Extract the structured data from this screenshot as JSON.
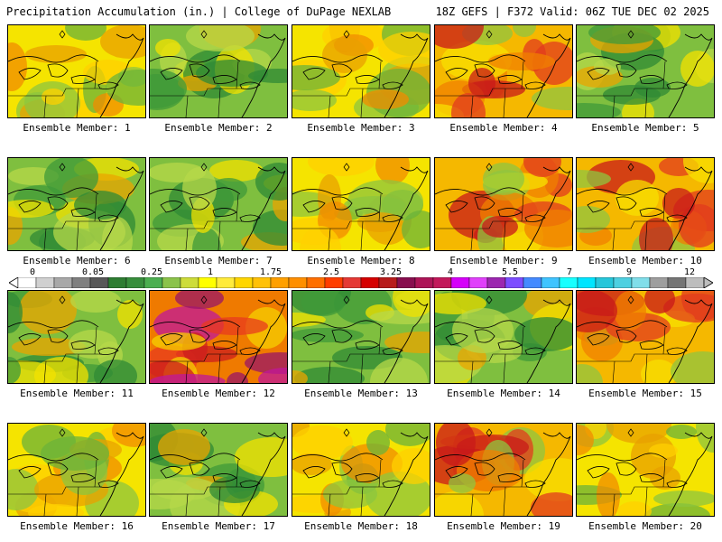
{
  "header": {
    "left_title": "Precipitation Accumulation (in.) | College of DuPage NEXLAB",
    "right_title": "18Z GEFS | F372 Valid: 06Z TUE DEC 02 2025"
  },
  "panels": [
    {
      "label": "Ensemble Member: 1",
      "tone": "yellow"
    },
    {
      "label": "Ensemble Member: 2",
      "tone": "green"
    },
    {
      "label": "Ensemble Member: 3",
      "tone": "yellow"
    },
    {
      "label": "Ensemble Member: 4",
      "tone": "red"
    },
    {
      "label": "Ensemble Member: 5",
      "tone": "green"
    },
    {
      "label": "Ensemble Member: 6",
      "tone": "green"
    },
    {
      "label": "Ensemble Member: 7",
      "tone": "green"
    },
    {
      "label": "Ensemble Member: 8",
      "tone": "yellow"
    },
    {
      "label": "Ensemble Member: 9",
      "tone": "red"
    },
    {
      "label": "Ensemble Member: 10",
      "tone": "red"
    },
    {
      "label": "Ensemble Member: 11",
      "tone": "green"
    },
    {
      "label": "Ensemble Member: 12",
      "tone": "magenta"
    },
    {
      "label": "Ensemble Member: 13",
      "tone": "green"
    },
    {
      "label": "Ensemble Member: 14",
      "tone": "green"
    },
    {
      "label": "Ensemble Member: 15",
      "tone": "red"
    },
    {
      "label": "Ensemble Member: 16",
      "tone": "yellow"
    },
    {
      "label": "Ensemble Member: 17",
      "tone": "green"
    },
    {
      "label": "Ensemble Member: 18",
      "tone": "yellow"
    },
    {
      "label": "Ensemble Member: 19",
      "tone": "red"
    },
    {
      "label": "Ensemble Member: 20",
      "tone": "yellow"
    }
  ],
  "colorbar": {
    "ticks": [
      "0",
      "0.05",
      "0.25",
      "1",
      "1.75",
      "2.5",
      "3.25",
      "4",
      "5.5",
      "7",
      "9",
      "12"
    ],
    "colors": [
      "#ffffff",
      "#d0d0d0",
      "#a8a8a8",
      "#808080",
      "#585858",
      "#2e7d32",
      "#388e3c",
      "#4caf50",
      "#8bc34a",
      "#cddc39",
      "#ffff00",
      "#ffeb3b",
      "#ffd600",
      "#ffc107",
      "#ffa000",
      "#ff8f00",
      "#ff6f00",
      "#ff3d00",
      "#e53935",
      "#d50000",
      "#b71c1c",
      "#880e4f",
      "#ad1457",
      "#c2185b",
      "#d500f9",
      "#e040fb",
      "#9c27b0",
      "#7c4dff",
      "#448aff",
      "#40c4ff",
      "#18ffff",
      "#00e5ff",
      "#26c6da",
      "#4dd0e1",
      "#80deea",
      "#9e9e9e",
      "#757575",
      "#bdbdbd"
    ]
  }
}
